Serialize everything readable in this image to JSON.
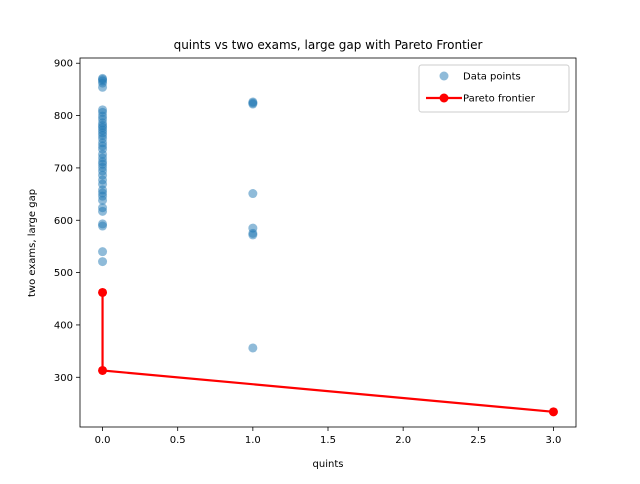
{
  "chart_data": {
    "type": "scatter",
    "title": "quints vs two exams, large gap with Pareto Frontier",
    "xlabel": "quints",
    "ylabel": "two exams, large gap",
    "xlim": [
      -0.15,
      3.15
    ],
    "ylim": [
      205,
      910
    ],
    "xticks": [
      0.0,
      0.5,
      1.0,
      1.5,
      2.0,
      2.5,
      3.0
    ],
    "xtick_labels": [
      "0.0",
      "0.5",
      "1.0",
      "1.5",
      "2.0",
      "2.5",
      "3.0"
    ],
    "yticks": [
      300,
      400,
      500,
      600,
      700,
      800,
      900
    ],
    "ytick_labels": [
      "300",
      "400",
      "500",
      "600",
      "700",
      "800",
      "900"
    ],
    "grid": false,
    "legend_position": "top-right",
    "series": [
      {
        "name": "Data points",
        "kind": "scatter",
        "color": "#1f77b4",
        "points": [
          [
            0,
            871
          ],
          [
            0,
            869
          ],
          [
            0,
            866
          ],
          [
            0,
            862
          ],
          [
            0,
            854
          ],
          [
            0,
            811
          ],
          [
            0,
            806
          ],
          [
            0,
            799
          ],
          [
            0,
            793
          ],
          [
            0,
            786
          ],
          [
            0,
            781
          ],
          [
            0,
            777
          ],
          [
            0,
            772
          ],
          [
            0,
            767
          ],
          [
            0,
            762
          ],
          [
            0,
            756
          ],
          [
            0,
            748
          ],
          [
            0,
            742
          ],
          [
            0,
            736
          ],
          [
            0,
            726
          ],
          [
            0,
            719
          ],
          [
            0,
            712
          ],
          [
            0,
            707
          ],
          [
            0,
            701
          ],
          [
            0,
            694
          ],
          [
            0,
            686
          ],
          [
            0,
            677
          ],
          [
            0,
            669
          ],
          [
            0,
            658
          ],
          [
            0,
            652
          ],
          [
            0,
            646
          ],
          [
            0,
            638
          ],
          [
            0,
            624
          ],
          [
            0,
            617
          ],
          [
            0,
            593
          ],
          [
            0,
            589
          ],
          [
            0,
            540
          ],
          [
            0,
            521
          ],
          [
            1,
            826
          ],
          [
            1,
            824
          ],
          [
            1,
            822
          ],
          [
            1,
            651
          ],
          [
            1,
            585
          ],
          [
            1,
            575
          ],
          [
            1,
            572
          ],
          [
            1,
            356
          ]
        ]
      },
      {
        "name": "Pareto frontier",
        "kind": "line",
        "color": "#ff0000",
        "points": [
          [
            0,
            462
          ],
          [
            0,
            313
          ],
          [
            3,
            234
          ]
        ]
      }
    ]
  }
}
